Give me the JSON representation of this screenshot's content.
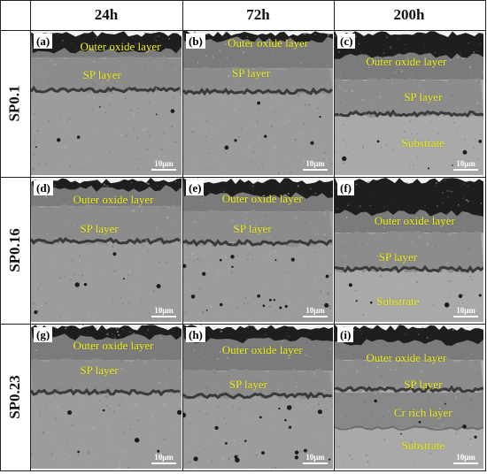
{
  "columns": [
    "24h",
    "72h",
    "200h"
  ],
  "rows": [
    "SP0.1",
    "SP0.16",
    "SP0.23"
  ],
  "scale_bar": "10μm",
  "panels": [
    {
      "label": "(a)",
      "annotations": [
        {
          "text": "Outer oxide layer"
        },
        {
          "text": "SP layer"
        }
      ]
    },
    {
      "label": "(b)",
      "annotations": [
        {
          "text": "Outer oxide layer"
        },
        {
          "text": "SP layer"
        }
      ]
    },
    {
      "label": "(c)",
      "annotations": [
        {
          "text": "Outer oxide layer"
        },
        {
          "text": "SP layer"
        },
        {
          "text": "Substrate"
        }
      ]
    },
    {
      "label": "(d)",
      "annotations": [
        {
          "text": "Outer oxide layer"
        },
        {
          "text": "SP layer"
        }
      ]
    },
    {
      "label": "(e)",
      "annotations": [
        {
          "text": "Outer oxide layer"
        },
        {
          "text": "SP layer"
        }
      ]
    },
    {
      "label": "(f)",
      "annotations": [
        {
          "text": "Outer oxide layer"
        },
        {
          "text": "SP layer"
        },
        {
          "text": "Substrate"
        }
      ]
    },
    {
      "label": "(g)",
      "annotations": [
        {
          "text": "Outer oxide layer"
        },
        {
          "text": "SP layer"
        }
      ]
    },
    {
      "label": "(h)",
      "annotations": [
        {
          "text": "Outer oxide layer"
        },
        {
          "text": "SP layer"
        }
      ]
    },
    {
      "label": "(i)",
      "annotations": [
        {
          "text": "Outer oxide layer"
        },
        {
          "text": "SP layer"
        },
        {
          "text": "Cr rich layer"
        },
        {
          "text": "Substrate"
        }
      ]
    }
  ],
  "colors": {
    "annotation": "#f3f31a",
    "grid_line": "#222222"
  }
}
